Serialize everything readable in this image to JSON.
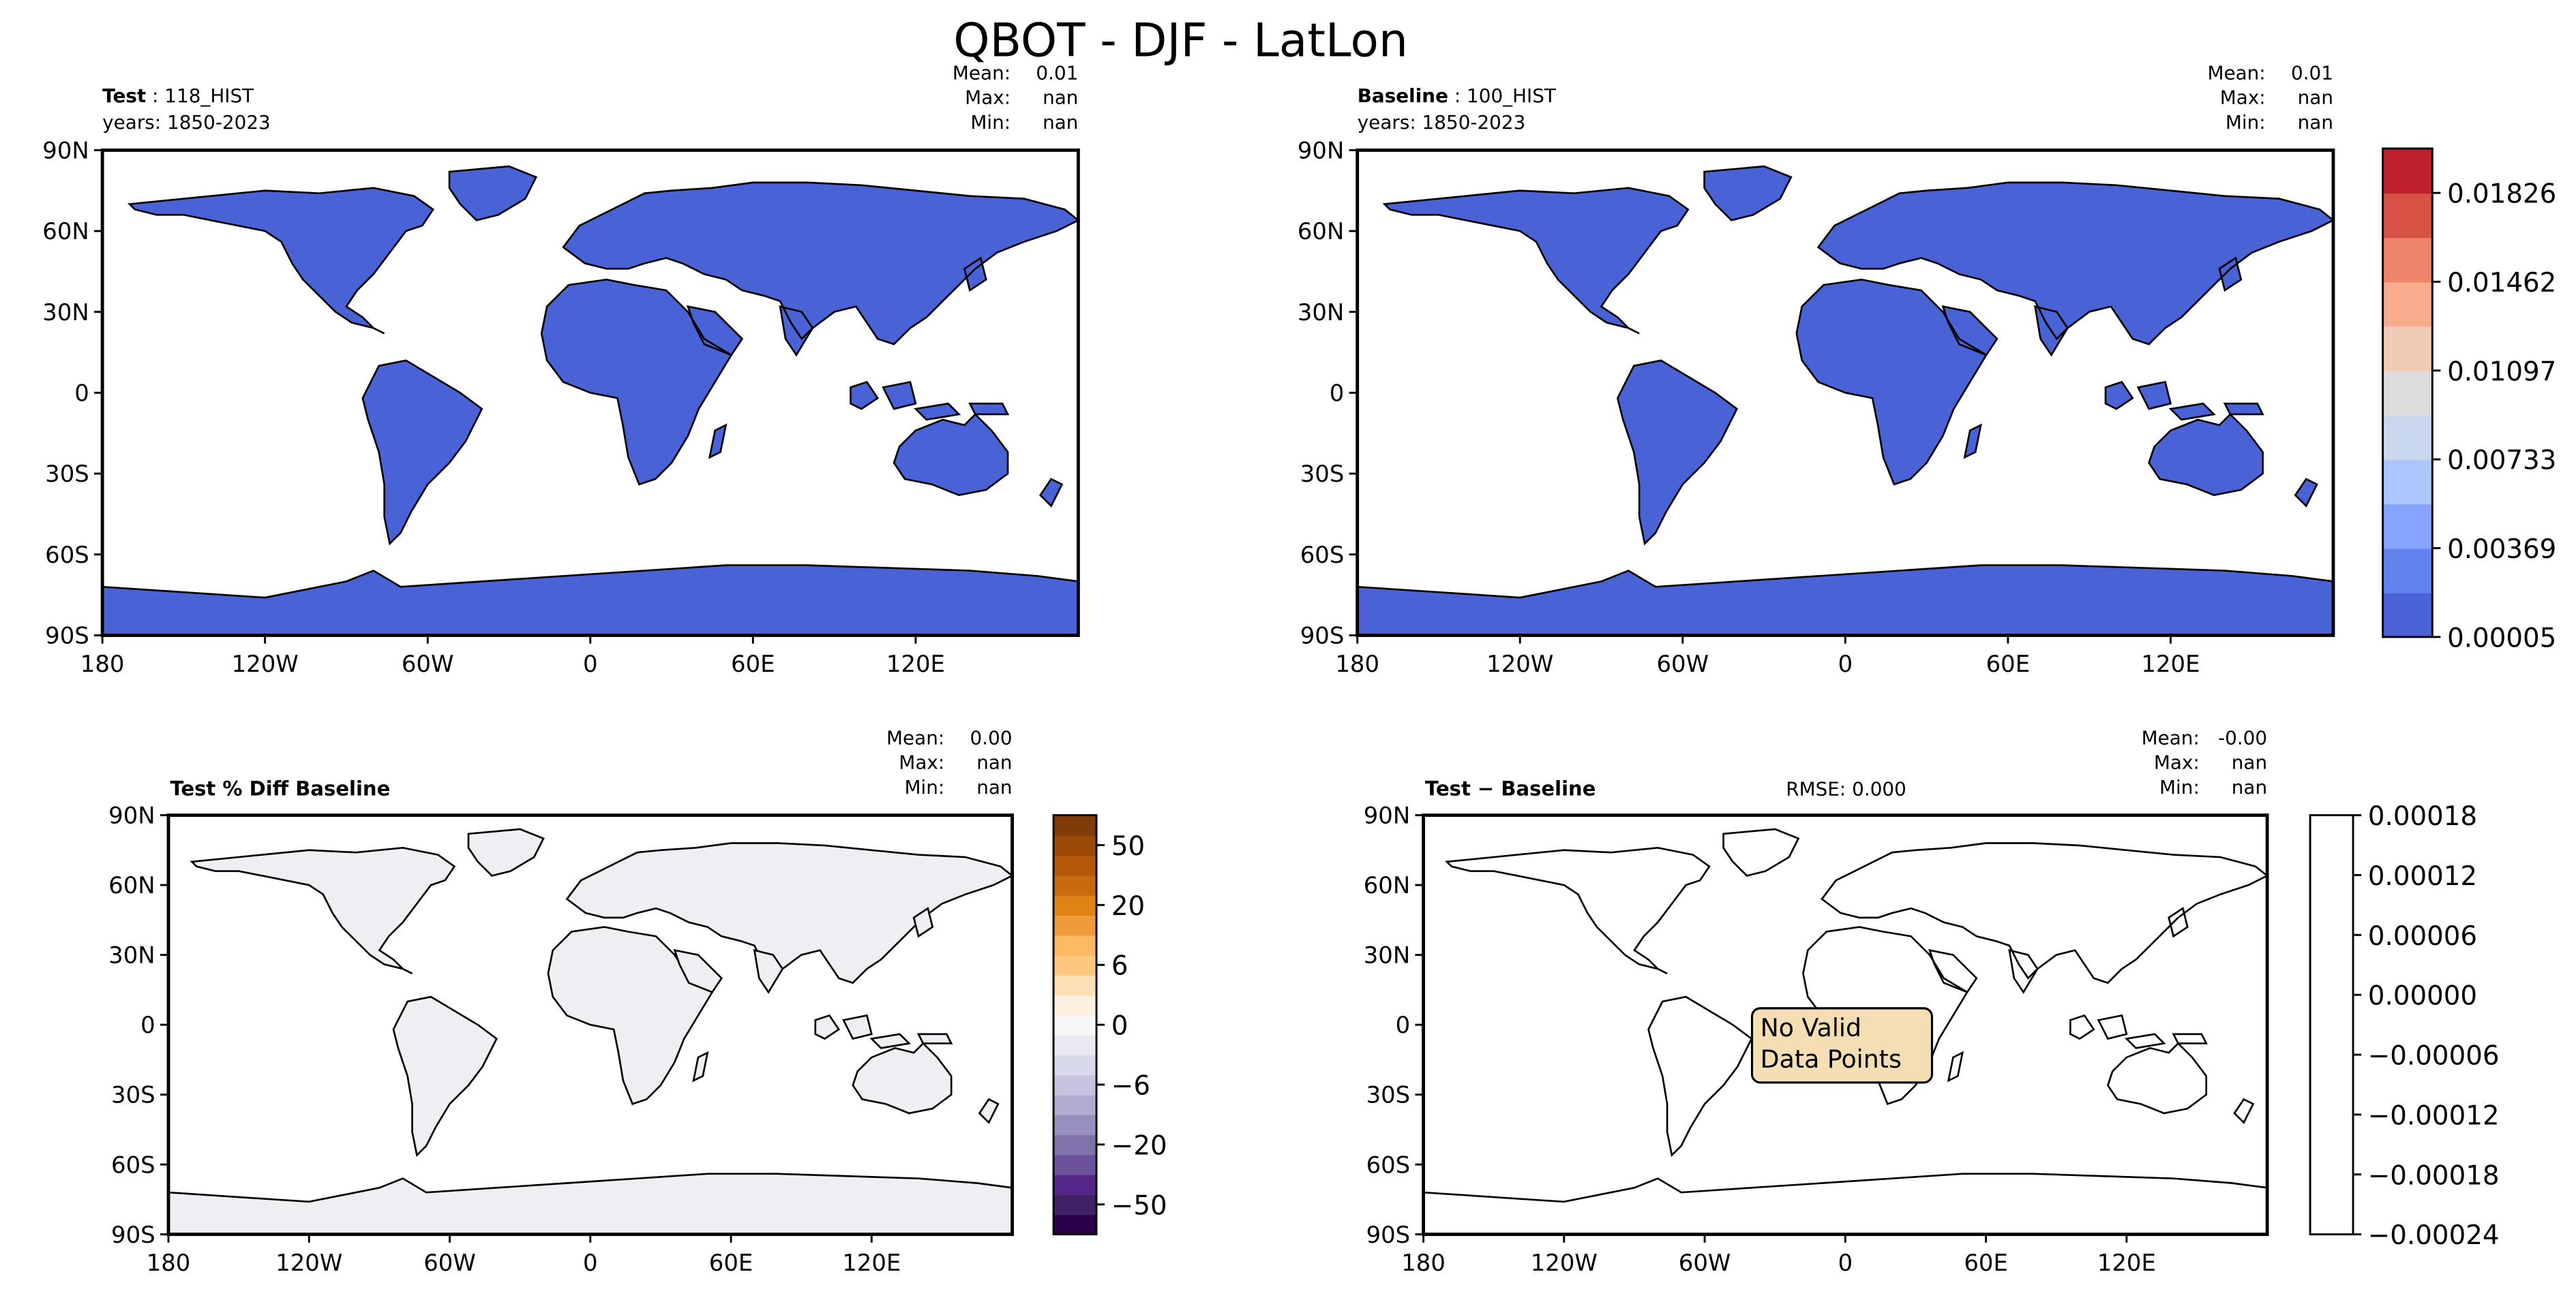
{
  "figure_title": "QBOT - DJF - LatLon",
  "panels": {
    "test": {
      "label_bold": "Test",
      "label_rest": " : 118_HIST",
      "years": "years: 1850-2023",
      "stats": {
        "mean_label": "Mean:",
        "mean": "0.01",
        "max_label": "Max:",
        "max": "nan",
        "min_label": "Min:",
        "min": "nan"
      }
    },
    "baseline": {
      "label_bold": "Baseline",
      "label_rest": " : 100_HIST",
      "years": "years: 1850-2023",
      "stats": {
        "mean_label": "Mean:",
        "mean": "0.01",
        "max_label": "Max:",
        "max": "nan",
        "min_label": "Min:",
        "min": "nan"
      }
    },
    "pctdiff": {
      "label_bold": "Test % Diff Baseline",
      "stats": {
        "mean_label": "Mean:",
        "mean": "0.00",
        "max_label": "Max:",
        "max": "nan",
        "min_label": "Min:",
        "min": "nan"
      }
    },
    "diff": {
      "label_bold": "Test − Baseline",
      "rmse": "RMSE: 0.000",
      "stats": {
        "mean_label": "Mean:",
        "mean": "-0.00",
        "max_label": "Max:",
        "max": "nan",
        "min_label": "Min:",
        "min": "nan"
      },
      "annotation_line1": "No Valid",
      "annotation_line2": "Data Points"
    }
  },
  "axes": {
    "lat_ticks": [
      "90N",
      "60N",
      "30N",
      "0",
      "30S",
      "60S",
      "90S"
    ],
    "lon_ticks": [
      "180",
      "120W",
      "60W",
      "0",
      "60E",
      "120E"
    ]
  },
  "colorbars": {
    "main": {
      "colors": [
        "#4962d6",
        "#6282ee",
        "#86a4fb",
        "#aac6fd",
        "#cad8ef",
        "#dddcdc",
        "#f2cbb7",
        "#f7ac8e",
        "#ee8468",
        "#d65244",
        "#bd1f2d"
      ],
      "tick_labels": [
        "0.00005",
        "0.00369",
        "0.00733",
        "0.01097",
        "0.01462",
        "0.01826"
      ]
    },
    "pctdiff": {
      "colors": [
        "#2d004b",
        "#402166",
        "#542788",
        "#6c529d",
        "#8073ac",
        "#998fbf",
        "#b2abd2",
        "#c8c3df",
        "#d8daeb",
        "#e9e9f1",
        "#f7f7f7",
        "#fdf0de",
        "#fee0b6",
        "#fdc77d",
        "#fdb863",
        "#f09a3a",
        "#e08214",
        "#c86a0d",
        "#b35806",
        "#9a4a06",
        "#7f3b08"
      ],
      "tick_labels": [
        "−50",
        "−20",
        "−6",
        "0",
        "6",
        "20",
        "50"
      ]
    },
    "diff": {
      "tick_labels": [
        "−0.00024",
        "−0.00018",
        "−0.00012",
        "−0.00006",
        "0.00000",
        "0.00006",
        "0.00012",
        "0.00018"
      ]
    }
  },
  "chart_data": [
    {
      "type": "heatmap",
      "title": "Test : 118_HIST",
      "subtitle": "years: 1850-2023",
      "xlabel": "",
      "ylabel": "",
      "xlim": [
        -180,
        180
      ],
      "ylim": [
        -90,
        90
      ],
      "x_ticks": [
        "180",
        "120W",
        "60W",
        "0",
        "60E",
        "120E"
      ],
      "y_ticks": [
        "90N",
        "60N",
        "30N",
        "0",
        "30S",
        "60S",
        "90S"
      ],
      "stats": {
        "mean": 0.01,
        "max": "nan",
        "min": "nan"
      },
      "colorbar_levels": [
        5e-05,
        0.00369,
        0.00733,
        0.01097,
        0.01462,
        0.01826
      ]
    },
    {
      "type": "heatmap",
      "title": "Baseline : 100_HIST",
      "subtitle": "years: 1850-2023",
      "xlim": [
        -180,
        180
      ],
      "ylim": [
        -90,
        90
      ],
      "stats": {
        "mean": 0.01,
        "max": "nan",
        "min": "nan"
      },
      "colorbar_levels": [
        5e-05,
        0.00369,
        0.00733,
        0.01097,
        0.01462,
        0.01826
      ]
    },
    {
      "type": "heatmap",
      "title": "Test % Diff Baseline",
      "xlim": [
        -180,
        180
      ],
      "ylim": [
        -90,
        90
      ],
      "stats": {
        "mean": 0.0,
        "max": "nan",
        "min": "nan"
      },
      "colorbar_levels": [
        -50,
        -20,
        -6,
        0,
        6,
        20,
        50
      ]
    },
    {
      "type": "heatmap",
      "title": "Test − Baseline",
      "xlim": [
        -180,
        180
      ],
      "ylim": [
        -90,
        90
      ],
      "stats": {
        "mean": -0.0,
        "max": "nan",
        "min": "nan",
        "rmse": 0.0
      },
      "annotation": "No Valid Data Points",
      "colorbar_levels": [
        -0.00024,
        -0.00018,
        -0.00012,
        -6e-05,
        0.0,
        6e-05,
        0.00012,
        0.00018
      ]
    }
  ]
}
